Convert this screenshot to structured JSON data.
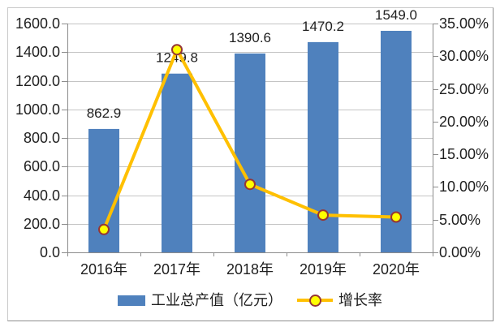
{
  "chart_data": {
    "type": "combo-bar-line",
    "title": "",
    "categories": [
      "2016年",
      "2017年",
      "2018年",
      "2019年",
      "2020年"
    ],
    "series": [
      {
        "name": "工业总产值（亿元）",
        "type": "bar",
        "axis": "left",
        "color": "#4F81BD",
        "values": [
          862.9,
          1249.8,
          1390.6,
          1470.2,
          1549.0
        ],
        "value_labels": [
          "862.9",
          "1249.8",
          "1390.6",
          "1470.2",
          "1549.0"
        ]
      },
      {
        "name": "增长率",
        "type": "line",
        "axis": "right",
        "color": "#FFC000",
        "marker_fill": "#FFFF00",
        "marker_border": "#963634",
        "values": [
          3.5,
          31.0,
          10.4,
          5.7,
          5.4
        ],
        "unit": "%"
      }
    ],
    "left_axis": {
      "min": 0,
      "max": 1600,
      "step": 200,
      "tick_labels": [
        "0.0",
        "200.0",
        "400.0",
        "600.0",
        "800.0",
        "1000.0",
        "1200.0",
        "1400.0",
        "1600.0"
      ]
    },
    "right_axis": {
      "min": 0,
      "max": 35,
      "step": 5,
      "tick_labels": [
        "0.00%",
        "5.00%",
        "10.00%",
        "15.00%",
        "20.00%",
        "25.00%",
        "30.00%",
        "35.00%"
      ]
    },
    "grid": {
      "horizontal": true,
      "at": "left-axis-major-units"
    },
    "legend_position": "bottom"
  },
  "colors": {
    "bar": "#4F81BD",
    "line": "#FFC000",
    "marker_fill": "#FFFF00",
    "marker_border": "#963634",
    "grid": "#C4C4C4",
    "axis": "#8C8C8C",
    "text": "#1F1F1F",
    "frame_border": "#A9A9A9",
    "background": "#FFFFFF"
  }
}
